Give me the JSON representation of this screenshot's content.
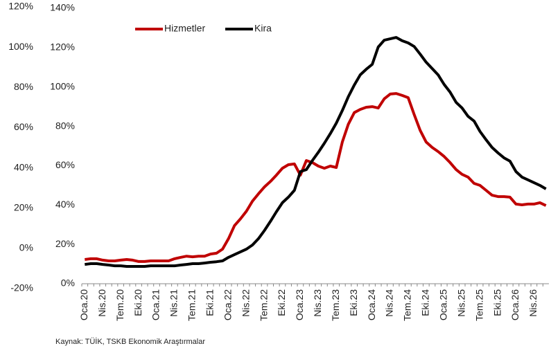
{
  "chart_data": {
    "type": "line",
    "categories": [
      "Oca.20",
      null,
      null,
      "Nis.20",
      null,
      null,
      "Tem.20",
      null,
      null,
      "Eki.20",
      null,
      null,
      "Oca.21",
      null,
      null,
      "Nis.21",
      null,
      null,
      "Tem.21",
      null,
      null,
      "Eki.21",
      null,
      null,
      "Oca.22",
      null,
      null,
      "Nis.22",
      null,
      null,
      "Tem.22",
      null,
      null,
      "Eki.22",
      null,
      null,
      "Oca.23",
      null,
      null,
      "Nis.23",
      null,
      null,
      "Tem.23",
      null,
      null,
      "Eki.23",
      null,
      null,
      "Oca.24",
      null,
      null,
      "Nis.24",
      null,
      null,
      "Tem.24",
      null,
      null,
      "Eki.24",
      null,
      null,
      "Oca.25",
      null,
      null,
      "Nis.25",
      null,
      null,
      "Tem.25",
      null,
      null,
      "Eki.25",
      null,
      null,
      "Oca.26",
      null,
      null,
      "Nis.26",
      null,
      null
    ],
    "series": [
      {
        "name": "Hizmetler",
        "color": "#c00000",
        "values": [
          12.3,
          12.7,
          12.7,
          12,
          11.6,
          11.6,
          12,
          12.3,
          12,
          11.3,
          11.3,
          11.6,
          11.6,
          11.6,
          11.6,
          12.7,
          13.4,
          14,
          13.7,
          14,
          14,
          15.1,
          15.5,
          17.6,
          22.9,
          29.5,
          33,
          36.9,
          42,
          45.7,
          49.2,
          52,
          55.2,
          58.7,
          60.5,
          60.9,
          55.2,
          62.6,
          61.6,
          59.8,
          58.7,
          59.8,
          59.1,
          72,
          81,
          87,
          88.6,
          89.7,
          90,
          89.3,
          94,
          96.4,
          96.7,
          95.7,
          94.6,
          86,
          78,
          72,
          69.3,
          67.2,
          64.7,
          61.6,
          58,
          55.6,
          54.2,
          51,
          50,
          47.5,
          45,
          44.3,
          44.3,
          44,
          40.5,
          40.1,
          40.5,
          40.5,
          41.2,
          39.7
        ]
      },
      {
        "name": "Kira",
        "color": "#000000",
        "values": [
          9.8,
          10.2,
          10.2,
          9.8,
          9.5,
          9.1,
          9.1,
          8.8,
          8.8,
          8.8,
          8.8,
          9.1,
          9.1,
          9.1,
          9.1,
          9.1,
          9.5,
          9.8,
          10.2,
          10.2,
          10.5,
          10.9,
          11.2,
          11.6,
          13.4,
          14.8,
          16.2,
          17.6,
          19.7,
          22.9,
          27.1,
          31.7,
          36.6,
          41.2,
          44,
          47.5,
          57,
          58,
          62.6,
          66.8,
          71.4,
          76.3,
          81.6,
          88,
          95,
          101,
          106.2,
          109,
          111.5,
          120.3,
          123.8,
          124.5,
          125.2,
          123.5,
          122.4,
          120.6,
          116.7,
          112.6,
          109.4,
          106.2,
          101.3,
          97.4,
          92.2,
          89.3,
          85.1,
          82.7,
          77.4,
          73.2,
          69.3,
          66.5,
          64,
          62.3,
          57,
          54.2,
          52.8,
          51.4,
          50,
          48.2
        ]
      }
    ],
    "ylim": [
      0,
      140
    ],
    "yticks": [
      {
        "value": 0,
        "label": "0%"
      },
      {
        "value": 20,
        "label": "20%"
      },
      {
        "value": 40,
        "label": "40%"
      },
      {
        "value": 60,
        "label": "60%"
      },
      {
        "value": 80,
        "label": "80%"
      },
      {
        "value": 100,
        "label": "100%"
      },
      {
        "value": 120,
        "label": "120%"
      },
      {
        "value": 140,
        "label": "140%"
      }
    ],
    "y2lim": [
      -20,
      120
    ],
    "y2ticks": [
      {
        "value": -20,
        "label": "-20%"
      },
      {
        "value": 0,
        "label": "0%"
      },
      {
        "value": 20,
        "label": "20%"
      },
      {
        "value": 40,
        "label": "40%"
      },
      {
        "value": 60,
        "label": "60%"
      },
      {
        "value": 80,
        "label": "80%"
      },
      {
        "value": 100,
        "label": "100%"
      },
      {
        "value": 120,
        "label": "120%"
      }
    ],
    "legend": "top",
    "source": "Kaynak: TÜİK, TSKB Ekonomik Araştırmalar"
  }
}
